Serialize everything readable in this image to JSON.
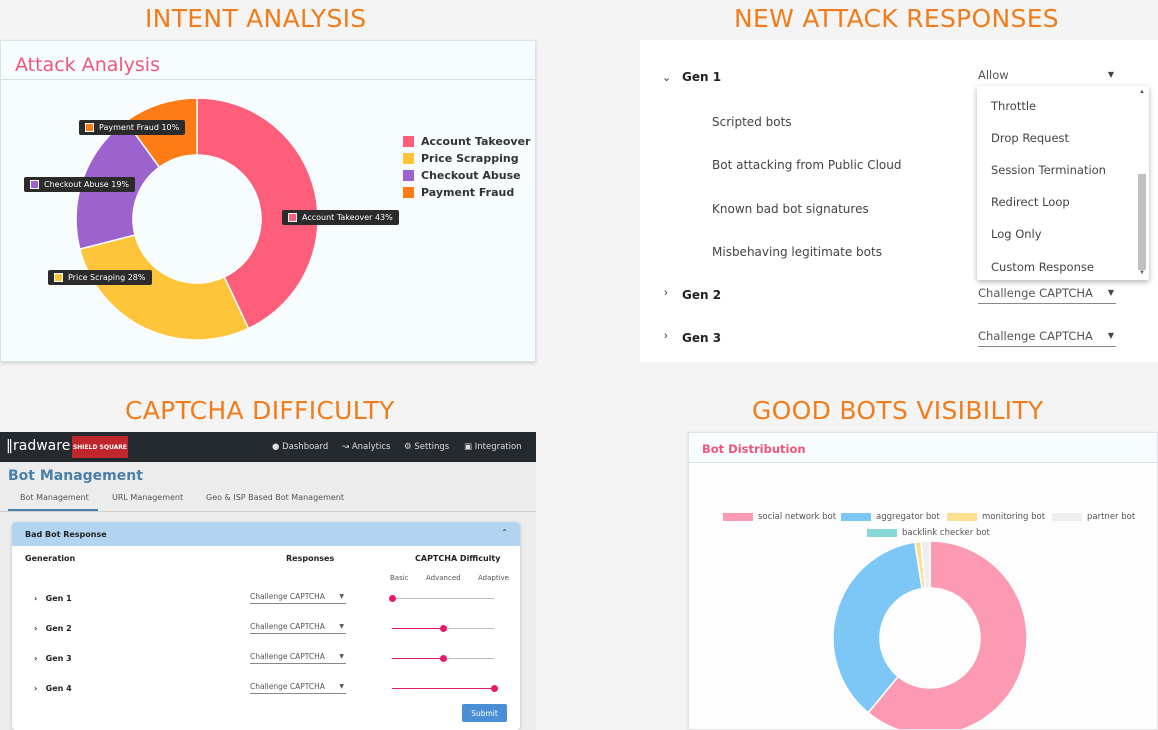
{
  "titles": {
    "intent": "INTENT ANALYSIS",
    "responses": "NEW ATTACK RESPONSES",
    "captcha": "CAPTCHA DIFFICULTY",
    "goodbots": "GOOD BOTS VISIBILITY"
  },
  "attack_analysis": {
    "title": "Attack Analysis",
    "legend": [
      "Account Takeover",
      "Price Scrapping",
      "Checkout Abuse",
      "Payment Fraud"
    ],
    "colors": [
      "#fd5e7a",
      "#fec43a",
      "#9c63cf",
      "#fe7b15"
    ],
    "tooltips": {
      "account": "Account Takeover 43%",
      "price": "Price Scraping 28%",
      "checkout": "Checkout Abuse 19%",
      "payment": "Payment Fraud 10%"
    }
  },
  "chart_data": [
    {
      "type": "pie",
      "categories": [
        "Account Takeover",
        "Price Scraping",
        "Checkout Abuse",
        "Payment Fraud"
      ],
      "values": [
        43,
        28,
        19,
        10
      ],
      "title": "Attack Analysis"
    },
    {
      "type": "pie",
      "categories": [
        "social network bot",
        "aggregator bot",
        "monitoring bot",
        "partner bot",
        "backlink checker bot"
      ],
      "values": [
        61,
        36.5,
        1,
        1.5,
        0
      ],
      "title": "Bot Distribution"
    }
  ],
  "responses": {
    "gen1": "Gen 1",
    "gen2": "Gen 2",
    "gen3": "Gen 3",
    "gen1_value": "Allow",
    "gen2_value": "Challenge CAPTCHA",
    "gen3_value": "Challenge CAPTCHA",
    "sub_rows": [
      "Scripted bots",
      "Bot attacking from Public Cloud",
      "Known bad bot signatures",
      "Misbehaving legitimate bots"
    ],
    "options": [
      "Throttle",
      "Drop Request",
      "Session Termination",
      "Redirect Loop",
      "Log Only",
      "Custom Response"
    ]
  },
  "captcha": {
    "logo": "radware",
    "badge": "SHIELD SQUARE",
    "nav": [
      "Dashboard",
      "Analytics",
      "Settings",
      "Integration"
    ],
    "page_title": "Bot Management",
    "tabs": [
      "Bot Management",
      "URL Management",
      "Geo & ISP Based Bot Management"
    ],
    "panel_title": "Bad Bot Response",
    "col_generation": "Generation",
    "col_responses": "Responses",
    "col_difficulty": "CAPTCHA Difficulty",
    "levels": [
      "Basic",
      "Advanced",
      "Adaptive"
    ],
    "rows": [
      {
        "gen": "Gen 1",
        "response": "Challenge CAPTCHA",
        "difficulty": 0.0
      },
      {
        "gen": "Gen 2",
        "response": "Challenge CAPTCHA",
        "difficulty": 0.5
      },
      {
        "gen": "Gen 3",
        "response": "Challenge CAPTCHA",
        "difficulty": 0.5
      },
      {
        "gen": "Gen 4",
        "response": "Challenge CAPTCHA",
        "difficulty": 1.0
      }
    ],
    "submit": "Submit"
  },
  "good_bots": {
    "title": "Bot Distribution",
    "legend": [
      "social network bot",
      "aggregator bot",
      "monitoring bot",
      "partner bot",
      "backlink checker bot"
    ],
    "colors": [
      "#fd9ab3",
      "#7cc7f5",
      "#fde08f",
      "#eeeeee",
      "#8ad9d9"
    ]
  }
}
